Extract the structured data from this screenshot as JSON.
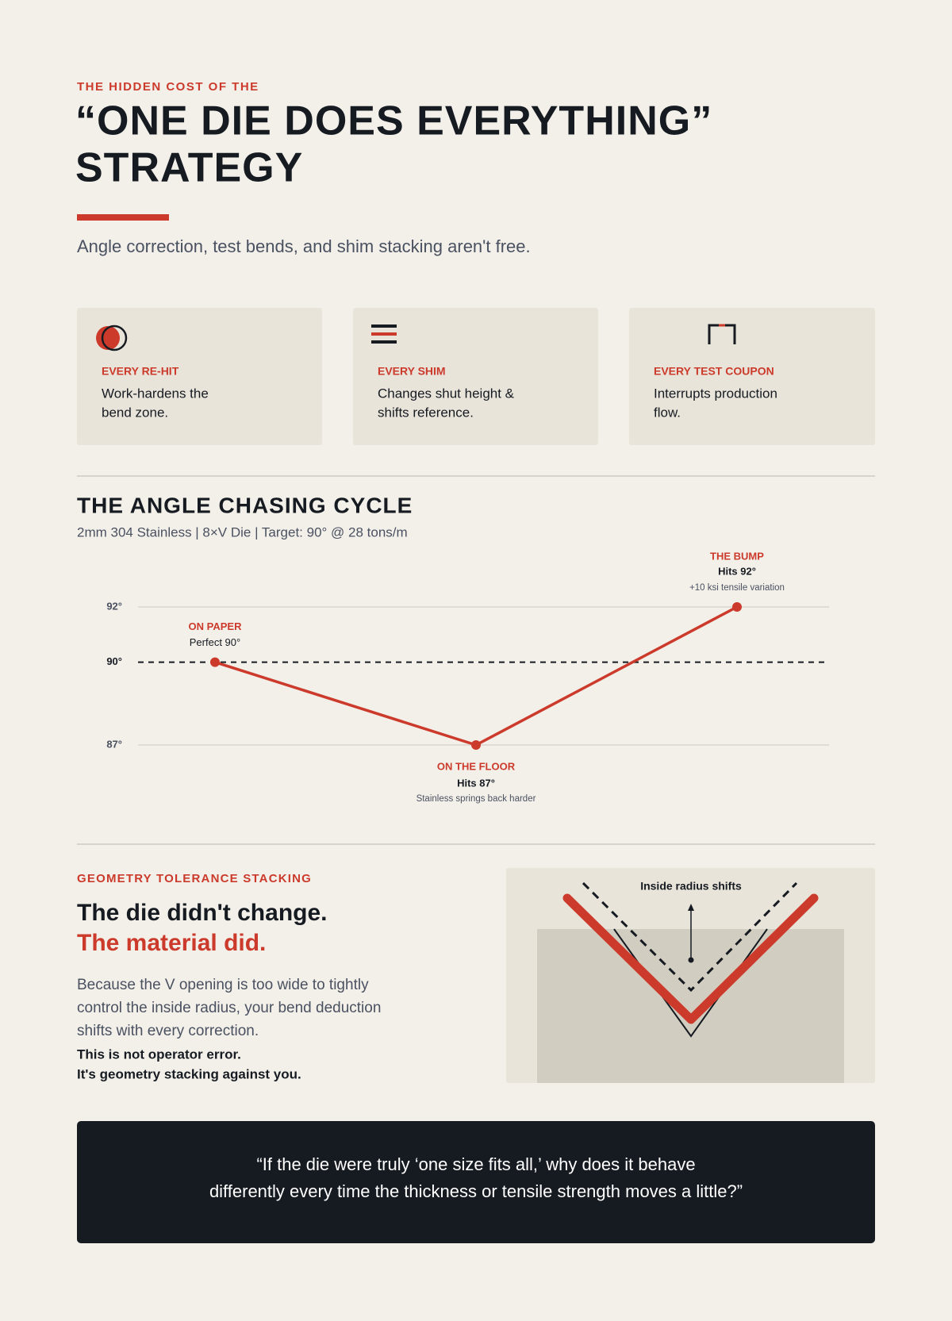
{
  "header": {
    "eyebrow": "THE HIDDEN COST OF THE",
    "title_lines": [
      "“ONE DIE DOES EVERYTHING”",
      "STRATEGY"
    ],
    "subtitle": "Angle correction, test bends, and shim stacking aren't free."
  },
  "cards": [
    {
      "label": "EVERY RE-HIT",
      "text_lines": [
        "Work-hardens the",
        "bend zone."
      ]
    },
    {
      "label": "EVERY SHIM",
      "text_lines": [
        "Changes shut height &",
        "shifts reference."
      ]
    },
    {
      "label": "EVERY TEST COUPON",
      "text_lines": [
        "Interrupts production",
        "flow."
      ]
    }
  ],
  "chart_data": {
    "type": "line",
    "title": "THE ANGLE CHASING CYCLE",
    "subtitle": "2mm 304 Stainless | 8×V Die | Target: 90° @ 28 tons/m",
    "categories": [
      "ON PAPER",
      "ON THE FLOOR",
      "THE BUMP"
    ],
    "values": [
      90,
      87,
      92
    ],
    "value_labels": [
      "Perfect 90°",
      "Hits 87°",
      "Hits 92°"
    ],
    "notes": [
      null,
      "Stainless springs back harder",
      "+10 ksi tensile variation"
    ],
    "color": "#cc3a2b",
    "target": 90,
    "ylim": [
      87,
      92
    ],
    "yticks": [
      {
        "value": 87,
        "label": "87°"
      },
      {
        "value": 90,
        "label": "90°"
      },
      {
        "value": 92,
        "label": "92°"
      }
    ],
    "grid": true
  },
  "geometry": {
    "eyebrow": "GEOMETRY TOLERANCE STACKING",
    "headline": "The die didn't change.",
    "headline_accent": "The material did.",
    "paragraph_lines": [
      "Because the V opening is too wide to tightly",
      "control the inside radius, your bend deduction",
      "shifts with every correction."
    ],
    "emphasis_lines": [
      "This is not operator error.",
      "It's geometry stacking against you."
    ],
    "diagram_label": "Inside radius shifts"
  },
  "quote": {
    "lines": [
      "“If the die were truly ‘one size fits all,’ why does it behave",
      "differently every time the thickness or tensile strength moves a little?”"
    ]
  }
}
